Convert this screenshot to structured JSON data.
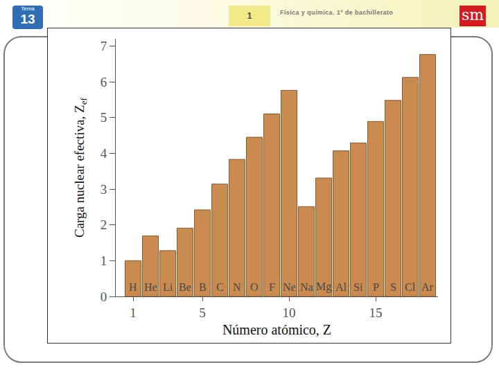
{
  "page": {
    "tema_label": "Tema",
    "tema_number": "13",
    "page_number": "1",
    "course": "Física y química. 1º de bachillerato",
    "logo": "sm"
  },
  "chart_data": {
    "type": "bar",
    "x_label": "Número atómico, Z",
    "y_label": "Carga nuclear efectiva, Z",
    "y_label_subscript": "ef",
    "x": [
      1,
      2,
      3,
      4,
      5,
      6,
      7,
      8,
      9,
      10,
      11,
      12,
      13,
      14,
      15,
      16,
      17,
      18
    ],
    "point_labels": [
      "H",
      "He",
      "Li",
      "Be",
      "B",
      "C",
      "N",
      "O",
      "F",
      "Ne",
      "Na",
      "Mg",
      "Al",
      "Si",
      "P",
      "S",
      "Cl",
      "Ar"
    ],
    "values": [
      1.0,
      1.69,
      1.28,
      1.91,
      2.42,
      3.14,
      3.83,
      4.45,
      5.1,
      5.76,
      2.51,
      3.31,
      4.07,
      4.29,
      4.89,
      5.48,
      6.12,
      6.76
    ],
    "color": "#c98b50",
    "xlim": [
      0,
      18.6
    ],
    "xticks": [
      1,
      5,
      10,
      15
    ],
    "ylim": [
      0,
      7.2
    ],
    "yticks": [
      0,
      1,
      2,
      3,
      4,
      5,
      6,
      7
    ],
    "grid": false,
    "data_labels": false
  }
}
